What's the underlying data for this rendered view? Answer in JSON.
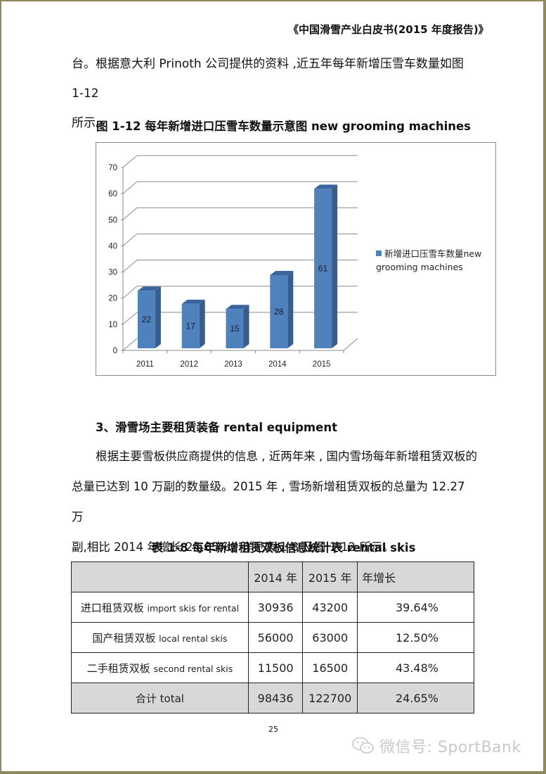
{
  "header": {
    "running_title": "《中国滑雪产业白皮书(2015 年度报告)》"
  },
  "intro": {
    "line1": "台。根据意大利 Prinoth 公司提供的资料 ,近五年每年新增压雪车数量如图 1-12",
    "line2": "所示。"
  },
  "figure": {
    "caption": "图 1-12 每年新增进口压雪车数量示意图 new grooming machines",
    "legend_line1": "新增进口压雪车数量new",
    "legend_line2": "grooming machines"
  },
  "chart_data": {
    "type": "bar",
    "title": "图 1-12 每年新增进口压雪车数量示意图 new grooming machines",
    "categories": [
      "2011",
      "2012",
      "2013",
      "2014",
      "2015"
    ],
    "series": [
      {
        "name": "新增进口压雪车数量new grooming machines",
        "values": [
          22,
          17,
          15,
          28,
          61
        ],
        "color": "#4f81bd"
      }
    ],
    "xlabel": "",
    "ylabel": "",
    "ylim": [
      0,
      70
    ],
    "yticks": [
      0,
      10,
      20,
      30,
      40,
      50,
      60,
      70
    ],
    "grid": true,
    "legend_position": "right",
    "style": "3d-column",
    "data_labels": true
  },
  "section3": {
    "heading": "3、滑雪场主要租赁装备  rental equipment",
    "p1_line1": "根据主要雪板供应商提供的信息 , 近两年来 , 国内雪场每年新增租赁双板的",
    "p1_line2": "总量已达到 10 万副的数量级。2015 年 , 雪场新增租赁双板的总量为 12.27 万",
    "p1_line3": "副,相比 2014 年增长 24.65%。详见表 1-8 及图 1-12 所示。"
  },
  "table": {
    "caption": "表 1-8  每年新增租赁双板信息统计表 rental skis",
    "headers": [
      "",
      "2014 年",
      "2015 年",
      "年增长"
    ],
    "rows": [
      {
        "label_cn": "进口租赁双板",
        "label_en": "import skis for rental",
        "y2014": "30936",
        "y2015": "43200",
        "growth": "39.64%"
      },
      {
        "label_cn": "国产租赁双板",
        "label_en": "local rental skis",
        "y2014": "56000",
        "y2015": "63000",
        "growth": "12.50%"
      },
      {
        "label_cn": "二手租赁双板",
        "label_en": "second rental skis",
        "y2014": "11500",
        "y2015": "16500",
        "growth": "43.48%"
      }
    ],
    "total": {
      "label": "合计 total",
      "y2014": "98436",
      "y2015": "122700",
      "growth": "24.65%"
    }
  },
  "footer": {
    "page_number": "25",
    "watermark": "微信号: SportBank"
  },
  "colors": {
    "page_border": "#8e8a5c",
    "bar_front": "#4f81bd",
    "bar_side": "#385d8a",
    "bar_top": "#3a64a0",
    "table_shade": "#d8d8d8"
  }
}
